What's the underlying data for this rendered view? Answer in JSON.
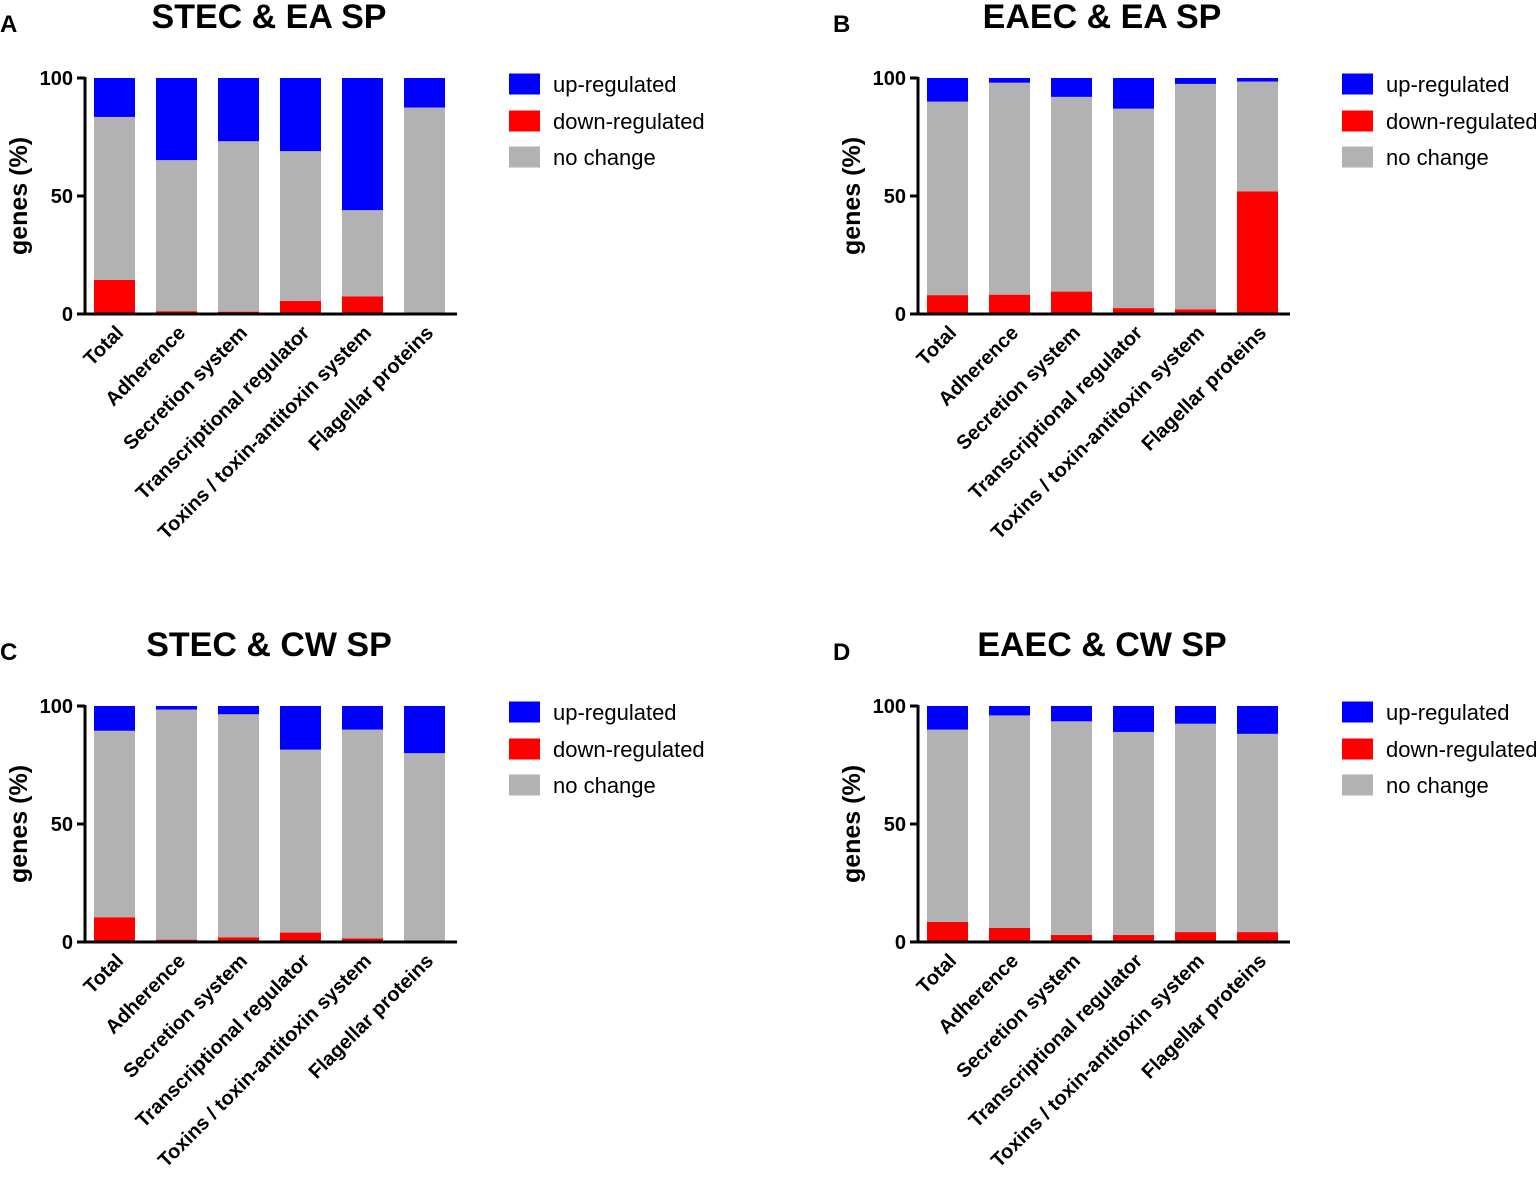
{
  "colors": {
    "up": "#0000FF",
    "down": "#FF0000",
    "nochange": "#B2B2B2",
    "axis": "#000000"
  },
  "legend": {
    "up": "up-regulated",
    "down": "down-regulated",
    "nochange": "no change"
  },
  "chart_data": [
    {
      "panel": "A",
      "type": "bar",
      "stacked": true,
      "title": "STEC & EA SP",
      "ylabel": "genes (%)",
      "ylim": [
        0,
        100
      ],
      "yticks": [
        "0",
        "50",
        "100"
      ],
      "categories": [
        "Total",
        "Adherence",
        "Secretion system",
        "Transcriptional regulator",
        "Toxins / toxin-antitoxin system",
        "Flagellar proteins"
      ],
      "series": [
        {
          "name": "down-regulated",
          "values": [
            14.5,
            1.2,
            1.0,
            5.5,
            7.5,
            0
          ]
        },
        {
          "name": "no change",
          "values": [
            69,
            64,
            72.2,
            63.5,
            36.5,
            87.5
          ]
        },
        {
          "name": "up-regulated",
          "values": [
            16.5,
            34.8,
            26.8,
            31,
            56,
            12.5
          ]
        }
      ],
      "legend_position": "right"
    },
    {
      "panel": "B",
      "type": "bar",
      "stacked": true,
      "title": "EAEC & EA SP",
      "ylabel": "genes (%)",
      "ylim": [
        0,
        100
      ],
      "yticks": [
        "0",
        "50",
        "100"
      ],
      "categories": [
        "Total",
        "Adherence",
        "Secretion system",
        "Transcriptional regulator",
        "Toxins / toxin-antitoxin system",
        "Flagellar proteins"
      ],
      "series": [
        {
          "name": "down-regulated",
          "values": [
            8,
            8.2,
            9.5,
            2.5,
            2.0,
            52
          ]
        },
        {
          "name": "no change",
          "values": [
            82,
            89.8,
            82.5,
            84.5,
            95.5,
            46.5
          ]
        },
        {
          "name": "up-regulated",
          "values": [
            10,
            2,
            8,
            13,
            2.5,
            1.5
          ]
        }
      ],
      "legend_position": "right"
    },
    {
      "panel": "C",
      "type": "bar",
      "stacked": true,
      "title": "STEC & CW SP",
      "ylabel": "genes (%)",
      "ylim": [
        0,
        100
      ],
      "yticks": [
        "0",
        "50",
        "100"
      ],
      "categories": [
        "Total",
        "Adherence",
        "Secretion system",
        "Transcriptional regulator",
        "Toxins / toxin-antitoxin system",
        "Flagellar proteins"
      ],
      "series": [
        {
          "name": "down-regulated",
          "values": [
            10.5,
            1.0,
            2.0,
            4.0,
            1.5,
            0
          ]
        },
        {
          "name": "no change",
          "values": [
            79,
            97.5,
            94.5,
            77.5,
            88.5,
            80
          ]
        },
        {
          "name": "up-regulated",
          "values": [
            10.5,
            1.5,
            3.5,
            18.5,
            10,
            20
          ]
        }
      ],
      "legend_position": "right"
    },
    {
      "panel": "D",
      "type": "bar",
      "stacked": true,
      "title": "EAEC & CW SP",
      "ylabel": "genes (%)",
      "ylim": [
        0,
        100
      ],
      "yticks": [
        "0",
        "50",
        "100"
      ],
      "categories": [
        "Total",
        "Adherence",
        "Secretion system",
        "Transcriptional regulator",
        "Toxins / toxin-antitoxin system",
        "Flagellar proteins"
      ],
      "series": [
        {
          "name": "down-regulated",
          "values": [
            8.5,
            6,
            3,
            3,
            4.2,
            4.2
          ]
        },
        {
          "name": "no change",
          "values": [
            81.5,
            90,
            90.5,
            86,
            88.3,
            84
          ]
        },
        {
          "name": "up-regulated",
          "values": [
            10,
            4,
            6.5,
            11,
            7.5,
            11.8
          ]
        }
      ],
      "legend_position": "right"
    }
  ]
}
